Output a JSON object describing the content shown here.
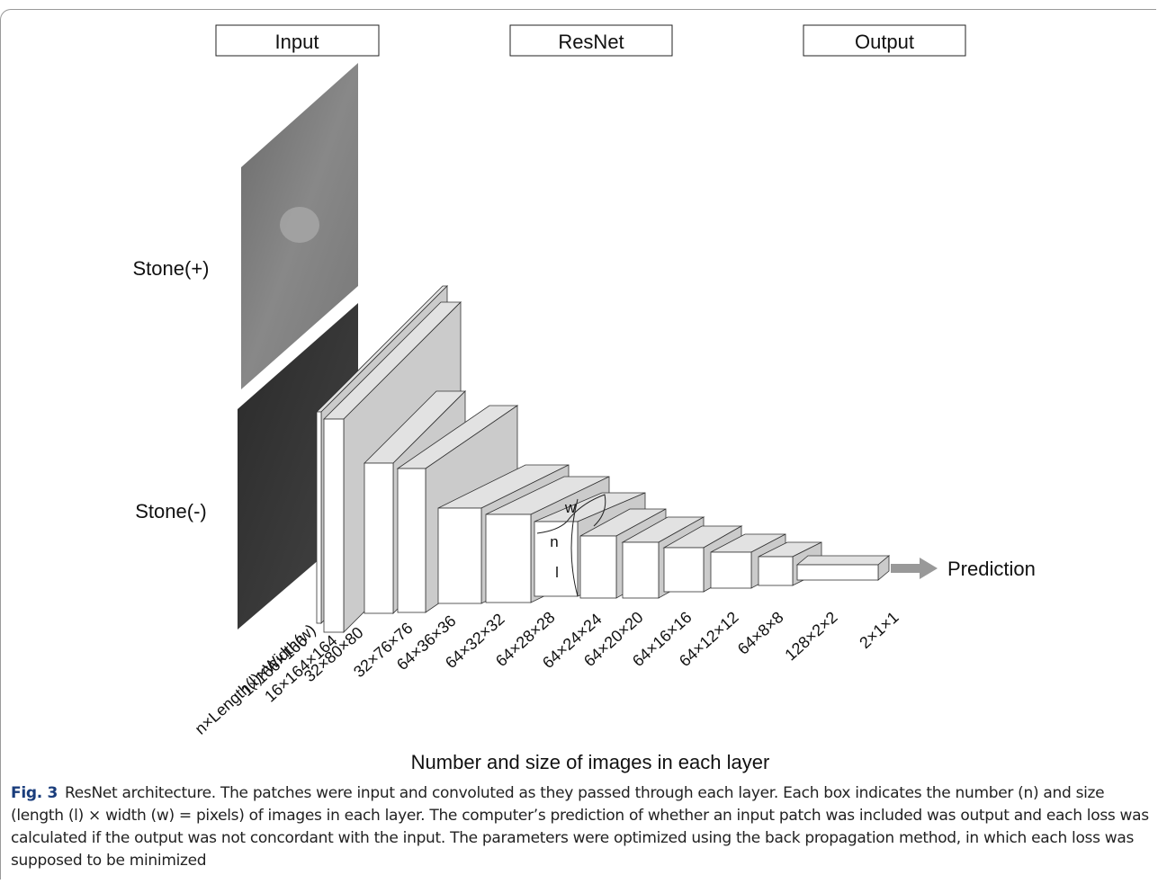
{
  "headers": [
    "Input",
    "ResNet",
    "Output"
  ],
  "inputs": [
    "Stone(+)",
    "Stone(-)"
  ],
  "layers": [
    "n×Length(l)×Width(w)",
    "1×166×166",
    "16×164×164",
    "32×80×80",
    "32×76×76",
    "64×36×36",
    "64×32×32",
    "64×28×28",
    "64×24×24",
    "64×20×20",
    "64×16×16",
    "64×12×12",
    "64×8×8",
    "128×2×2",
    "2×1×1"
  ],
  "box_labels": [
    "w",
    "n",
    "l"
  ],
  "prediction": "Prediction",
  "axis_title": "Number and size of images in each layer",
  "caption": {
    "label": "Fig. 3",
    "text": "ResNet architecture. The patches were input and convoluted as they passed through each layer. Each box indicates the number (n) and size (length (l) × width (w) = pixels) of images in each layer. The computer’s prediction of whether an input patch was included was output and each loss was calculated if the output was not concordant with the input. The parameters were optimized using the back propagation method, in which each loss was supposed to be minimized"
  }
}
